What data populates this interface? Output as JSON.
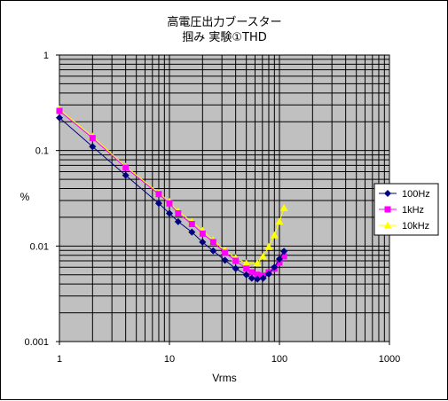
{
  "chart_data": {
    "type": "line",
    "title": [
      "高電圧出力ブースター",
      "掴み 実験①THD"
    ],
    "xlabel": "Vrms",
    "ylabel": "%",
    "xscale": "log",
    "yscale": "log",
    "xlim": [
      1,
      1000
    ],
    "ylim": [
      0.001,
      1
    ],
    "x_tick_labels": [
      "1",
      "10",
      "100",
      "1000"
    ],
    "y_tick_labels": [
      "1",
      "0.1",
      "0.01",
      "0.001"
    ],
    "grid": true,
    "plot_background": "#c0c0c0",
    "legend_position": "right",
    "series": [
      {
        "name": "100Hz",
        "color": "#000080",
        "marker": "diamond",
        "x": [
          1,
          2,
          4,
          8,
          10,
          12,
          16,
          20,
          25,
          32,
          40,
          50,
          56,
          63,
          71,
          80,
          90,
          100,
          110
        ],
        "y": [
          0.22,
          0.11,
          0.055,
          0.028,
          0.022,
          0.018,
          0.014,
          0.011,
          0.0089,
          0.0071,
          0.0058,
          0.005,
          0.0046,
          0.0045,
          0.0046,
          0.0051,
          0.006,
          0.0073,
          0.0088
        ]
      },
      {
        "name": "1kHz",
        "color": "#ff00ff",
        "marker": "square",
        "x": [
          1,
          2,
          4,
          8,
          10,
          12,
          16,
          20,
          25,
          32,
          40,
          50,
          56,
          63,
          71,
          80,
          90,
          100,
          110
        ],
        "y": [
          0.26,
          0.135,
          0.066,
          0.035,
          0.028,
          0.022,
          0.017,
          0.0135,
          0.011,
          0.0085,
          0.007,
          0.0058,
          0.0053,
          0.005,
          0.0049,
          0.0053,
          0.0058,
          0.0067,
          0.0078
        ]
      },
      {
        "name": "10kHz",
        "color": "#ffff00",
        "marker": "triangle",
        "x": [
          1,
          2,
          4,
          8,
          10,
          12,
          16,
          20,
          25,
          32,
          40,
          50,
          63,
          71,
          80,
          90,
          100,
          110
        ],
        "y": [
          0.27,
          0.14,
          0.068,
          0.036,
          0.029,
          0.023,
          0.018,
          0.0145,
          0.0115,
          0.009,
          0.0075,
          0.0066,
          0.0066,
          0.0078,
          0.0098,
          0.013,
          0.018,
          0.025
        ]
      }
    ]
  }
}
